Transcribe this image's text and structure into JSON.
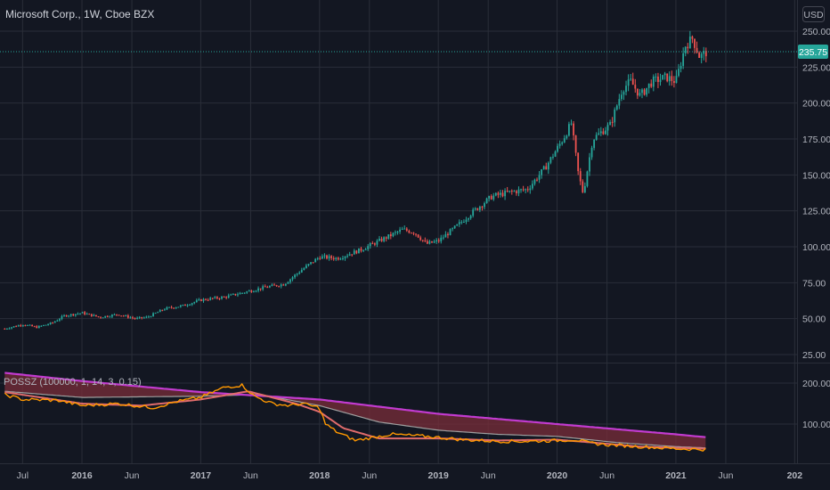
{
  "header": {
    "symbol_title": "Microsoft Corp., 1W, Cboe BZX",
    "currency": "USD",
    "last_price_label": "235.75"
  },
  "indicator": {
    "title": "POSSZ (100000, 1, 14, 3, 0.15)"
  },
  "colors": {
    "background": "#131722",
    "grid": "#2a2e39",
    "up": "#26a69a",
    "down": "#ef5350",
    "price_line": "#26a69a",
    "band_fill": "#7a2d3a",
    "band_top": "#c23bd0",
    "osc_main": "#ff9800",
    "osc_hot": "#f0e442",
    "osc_alt": "#f06060",
    "osc_smooth": "#e06c6c",
    "osc_slow": "#9e9e9e"
  },
  "chart_data": [
    {
      "type": "candlestick",
      "title": "Microsoft Corp., 1W, Cboe BZX",
      "unit": "USD",
      "x_tick_labels": [
        "Jul",
        "2016",
        "Jun",
        "2017",
        "Jun",
        "2018",
        "Jun",
        "2019",
        "Jun",
        "2020",
        "Jun",
        "2021",
        "Jun",
        "202"
      ],
      "y_ticks": [
        25,
        50,
        75,
        100,
        125,
        150,
        175,
        200,
        225,
        250
      ],
      "y_tick_labels": [
        "25.00",
        "50.00",
        "75.00",
        "100.00",
        "125.00",
        "150.00",
        "175.00",
        "200.00",
        "225.00",
        "250.00"
      ],
      "ylim": [
        15,
        256
      ],
      "last_price": 235.75,
      "grid": true,
      "price_path": [
        [
          2015.35,
          43
        ],
        [
          2015.5,
          46
        ],
        [
          2015.62,
          44
        ],
        [
          2015.75,
          47
        ],
        [
          2015.85,
          52
        ],
        [
          2016.0,
          54
        ],
        [
          2016.15,
          51
        ],
        [
          2016.3,
          53
        ],
        [
          2016.45,
          50
        ],
        [
          2016.55,
          51
        ],
        [
          2016.7,
          57
        ],
        [
          2016.85,
          59
        ],
        [
          2017.0,
          63
        ],
        [
          2017.2,
          65
        ],
        [
          2017.4,
          69
        ],
        [
          2017.55,
          72
        ],
        [
          2017.7,
          74
        ],
        [
          2017.85,
          84
        ],
        [
          2018.0,
          93
        ],
        [
          2018.15,
          92
        ],
        [
          2018.35,
          98
        ],
        [
          2018.55,
          106
        ],
        [
          2018.7,
          112
        ],
        [
          2018.8,
          110
        ],
        [
          2018.9,
          102
        ],
        [
          2019.0,
          104
        ],
        [
          2019.15,
          114
        ],
        [
          2019.3,
          125
        ],
        [
          2019.45,
          135
        ],
        [
          2019.6,
          138
        ],
        [
          2019.75,
          140
        ],
        [
          2019.9,
          155
        ],
        [
          2020.05,
          175
        ],
        [
          2020.12,
          186
        ],
        [
          2020.18,
          150
        ],
        [
          2020.22,
          137
        ],
        [
          2020.3,
          175
        ],
        [
          2020.45,
          185
        ],
        [
          2020.55,
          210
        ],
        [
          2020.62,
          215
        ],
        [
          2020.7,
          205
        ],
        [
          2020.8,
          215
        ],
        [
          2020.92,
          218
        ],
        [
          2021.0,
          215
        ],
        [
          2021.08,
          240
        ],
        [
          2021.14,
          245
        ],
        [
          2021.2,
          232
        ],
        [
          2021.26,
          235.75
        ]
      ]
    },
    {
      "type": "line",
      "title": "POSSZ (100000, 1, 14, 3, 0.15)",
      "y_ticks": [
        100,
        200
      ],
      "y_tick_labels": [
        "100.00",
        "200.00"
      ],
      "ylim": [
        30,
        250
      ],
      "series": [
        {
          "color": "#c23bd0",
          "values": [
            [
              2015.35,
              225
            ],
            [
              2016.0,
              205
            ],
            [
              2017.0,
              178
            ],
            [
              2018.0,
              160
            ],
            [
              2019.0,
              125
            ],
            [
              2020.0,
              100
            ],
            [
              2021.0,
              75
            ],
            [
              2021.25,
              68
            ]
          ]
        },
        {
          "color": "#ff9800",
          "values": [
            [
              2015.35,
              172
            ],
            [
              2015.5,
              160
            ],
            [
              2015.8,
              158
            ],
            [
              2016.0,
              145
            ],
            [
              2016.3,
              150
            ],
            [
              2016.6,
              140
            ],
            [
              2016.8,
              155
            ],
            [
              2017.0,
              165
            ],
            [
              2017.2,
              190
            ],
            [
              2017.35,
              195
            ],
            [
              2017.45,
              168
            ],
            [
              2017.6,
              150
            ],
            [
              2017.75,
              145
            ],
            [
              2017.85,
              150
            ],
            [
              2018.0,
              140
            ],
            [
              2018.05,
              100
            ],
            [
              2018.15,
              80
            ],
            [
              2018.3,
              60
            ],
            [
              2018.6,
              75
            ],
            [
              2018.9,
              70
            ],
            [
              2019.2,
              62
            ],
            [
              2019.5,
              58
            ],
            [
              2019.75,
              58
            ],
            [
              2020.0,
              60
            ],
            [
              2020.15,
              62
            ],
            [
              2020.25,
              55
            ],
            [
              2020.4,
              50
            ],
            [
              2020.7,
              45
            ],
            [
              2021.0,
              40
            ],
            [
              2021.25,
              38
            ]
          ]
        },
        {
          "color": "#e06c6c",
          "values": [
            [
              2015.35,
              178
            ],
            [
              2016.0,
              150
            ],
            [
              2016.5,
              145
            ],
            [
              2017.0,
              160
            ],
            [
              2017.4,
              180
            ],
            [
              2017.8,
              150
            ],
            [
              2018.0,
              130
            ],
            [
              2018.2,
              90
            ],
            [
              2018.5,
              65
            ],
            [
              2019.0,
              65
            ],
            [
              2019.5,
              60
            ],
            [
              2020.0,
              62
            ],
            [
              2020.3,
              55
            ],
            [
              2020.7,
              45
            ],
            [
              2021.25,
              40
            ]
          ]
        },
        {
          "color": "#9e9e9e",
          "values": [
            [
              2015.35,
              180
            ],
            [
              2016.0,
              165
            ],
            [
              2017.0,
              168
            ],
            [
              2017.5,
              172
            ],
            [
              2018.0,
              145
            ],
            [
              2018.5,
              105
            ],
            [
              2019.0,
              85
            ],
            [
              2019.5,
              75
            ],
            [
              2020.0,
              70
            ],
            [
              2020.5,
              55
            ],
            [
              2021.0,
              45
            ],
            [
              2021.25,
              42
            ]
          ]
        }
      ]
    }
  ]
}
